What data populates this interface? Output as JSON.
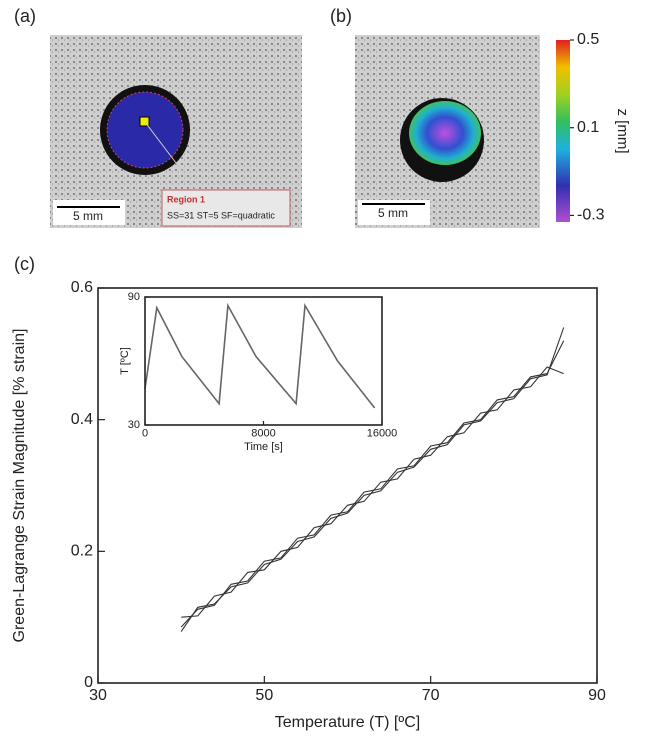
{
  "figure": {
    "panel_a": {
      "label": "(a)",
      "scale_bar": "5 mm",
      "region_title": "Region 1",
      "region_params": "SS=31 ST=5 SF=quadratic"
    },
    "panel_b": {
      "label": "(b)",
      "scale_bar": "5 mm",
      "colorbar": {
        "label": "z [mm]",
        "lim": [
          -0.33,
          0.5
        ],
        "ticks": [
          0.5,
          0.1,
          -0.3
        ]
      }
    },
    "panel_c": {
      "label": "(c)"
    }
  },
  "chart_data": [
    {
      "type": "line",
      "xlabel": "Temperature (T) [ºC]",
      "ylabel": "Green-Lagrange Strain Magnitude [% strain]",
      "xlim": [
        30,
        90
      ],
      "xticks": [
        30,
        50,
        70,
        90
      ],
      "ylim": [
        0,
        0.6
      ],
      "yticks": [
        0,
        0.2,
        0.4,
        0.6
      ],
      "x": [
        40,
        42,
        44,
        46,
        48,
        50,
        52,
        54,
        56,
        58,
        60,
        62,
        64,
        66,
        68,
        70,
        72,
        74,
        76,
        78,
        80,
        82,
        84,
        86
      ],
      "series": [
        {
          "color": "#333333",
          "values": [
            0.085,
            0.112,
            0.118,
            0.15,
            0.155,
            0.185,
            0.19,
            0.22,
            0.225,
            0.255,
            0.26,
            0.29,
            0.295,
            0.325,
            0.33,
            0.36,
            0.365,
            0.395,
            0.4,
            0.43,
            0.435,
            0.465,
            0.47,
            0.52
          ]
        },
        {
          "color": "#333333",
          "values": [
            0.1,
            0.102,
            0.132,
            0.138,
            0.168,
            0.172,
            0.2,
            0.206,
            0.236,
            0.242,
            0.27,
            0.276,
            0.305,
            0.31,
            0.34,
            0.346,
            0.374,
            0.38,
            0.41,
            0.415,
            0.445,
            0.45,
            0.48,
            0.47
          ]
        },
        {
          "color": "#333333",
          "values": [
            0.078,
            0.115,
            0.12,
            0.146,
            0.152,
            0.18,
            0.188,
            0.215,
            0.222,
            0.25,
            0.258,
            0.285,
            0.292,
            0.32,
            0.328,
            0.355,
            0.362,
            0.392,
            0.398,
            0.426,
            0.432,
            0.462,
            0.468,
            0.54
          ]
        }
      ]
    },
    {
      "type": "line",
      "xlabel": "Time [s]",
      "ylabel": "T [ºC]",
      "xlim": [
        0,
        16000
      ],
      "xticks": [
        0,
        8000,
        16000
      ],
      "ylim": [
        30,
        90
      ],
      "yticks": [
        30,
        90
      ],
      "x": [
        0,
        800,
        2500,
        5000,
        5600,
        7500,
        10200,
        10800,
        13000,
        15500
      ],
      "series": [
        {
          "color": "#666666",
          "values": [
            47,
            85,
            62,
            40,
            86,
            62,
            40,
            86,
            60,
            38
          ]
        }
      ]
    }
  ]
}
